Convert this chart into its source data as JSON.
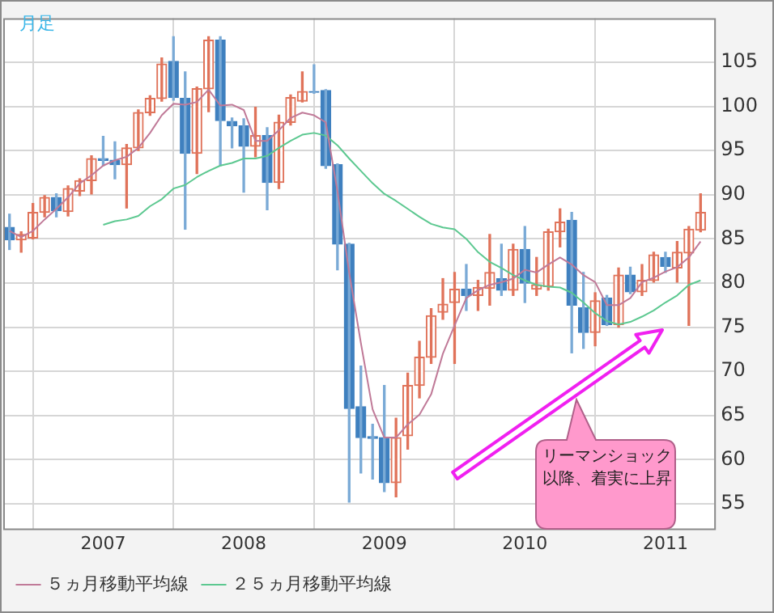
{
  "chart_data": {
    "type": "candlestick",
    "title": "月足",
    "x": [
      "2006-05",
      "2006-06",
      "2006-07",
      "2006-08",
      "2006-09",
      "2006-10",
      "2006-11",
      "2006-12",
      "2007-01",
      "2007-02",
      "2007-03",
      "2007-04",
      "2007-05",
      "2007-06",
      "2007-07",
      "2007-08",
      "2007-09",
      "2007-10",
      "2007-11",
      "2007-12",
      "2008-01",
      "2008-02",
      "2008-03",
      "2008-04",
      "2008-05",
      "2008-06",
      "2008-07",
      "2008-08",
      "2008-09",
      "2008-10",
      "2008-11",
      "2008-12",
      "2009-01",
      "2009-02",
      "2009-03",
      "2009-04",
      "2009-05",
      "2009-06",
      "2009-07",
      "2009-08",
      "2009-09",
      "2009-10",
      "2009-11",
      "2009-12",
      "2010-01",
      "2010-02",
      "2010-03",
      "2010-04",
      "2010-05",
      "2010-06",
      "2010-07",
      "2010-08",
      "2010-09",
      "2010-10",
      "2010-11",
      "2010-12",
      "2011-01",
      "2011-02",
      "2011-03",
      "2011-04"
    ],
    "ohlc": [
      [
        86.3,
        87.8,
        83.8,
        84.9
      ],
      [
        84.9,
        85.8,
        83.5,
        85.5
      ],
      [
        85.1,
        89.0,
        85.0,
        88.0
      ],
      [
        88.0,
        89.9,
        87.5,
        89.7
      ],
      [
        89.7,
        90.1,
        87.5,
        88.2
      ],
      [
        88.1,
        91.0,
        87.6,
        90.7
      ],
      [
        90.4,
        91.8,
        89.9,
        91.6
      ],
      [
        91.6,
        94.4,
        90.1,
        94.1
      ],
      [
        94.1,
        96.6,
        93.3,
        93.9
      ],
      [
        93.9,
        96.0,
        91.8,
        93.4
      ],
      [
        93.4,
        95.7,
        88.5,
        95.3
      ],
      [
        95.3,
        99.6,
        95.0,
        99.3
      ],
      [
        99.3,
        101.2,
        99.0,
        100.9
      ],
      [
        100.9,
        105.5,
        100.6,
        104.8
      ],
      [
        105.1,
        107.9,
        100.7,
        101.0
      ],
      [
        100.9,
        103.9,
        86.1,
        94.7
      ],
      [
        94.7,
        102.2,
        92.4,
        102.0
      ],
      [
        102.0,
        107.9,
        99.4,
        107.5
      ],
      [
        107.5,
        107.9,
        93.3,
        98.4
      ],
      [
        98.3,
        98.7,
        95.3,
        97.8
      ],
      [
        97.8,
        98.6,
        90.3,
        95.5
      ],
      [
        95.5,
        99.9,
        94.3,
        96.7
      ],
      [
        96.7,
        97.6,
        88.3,
        91.4
      ],
      [
        91.4,
        99.0,
        90.7,
        98.2
      ],
      [
        98.2,
        101.3,
        97.9,
        101.0
      ],
      [
        100.6,
        103.9,
        100.5,
        101.7
      ],
      [
        101.7,
        104.7,
        101.5,
        101.6
      ],
      [
        101.8,
        101.9,
        93.0,
        93.3
      ],
      [
        93.4,
        93.5,
        81.5,
        84.4
      ],
      [
        84.4,
        84.5,
        55.2,
        65.8
      ],
      [
        66.0,
        70.6,
        58.5,
        62.5
      ],
      [
        62.6,
        64.0,
        57.8,
        62.4
      ],
      [
        62.5,
        68.4,
        56.4,
        57.4
      ],
      [
        57.4,
        64.7,
        55.8,
        62.5
      ],
      [
        62.7,
        69.8,
        61.2,
        68.4
      ],
      [
        68.4,
        73.4,
        67.0,
        71.6
      ],
      [
        71.6,
        77.1,
        70.9,
        76.3
      ],
      [
        76.7,
        80.5,
        75.9,
        77.6
      ],
      [
        77.8,
        81.2,
        70.9,
        79.3
      ],
      [
        79.3,
        82.1,
        76.9,
        78.6
      ],
      [
        78.6,
        80.3,
        76.9,
        79.5
      ],
      [
        79.4,
        85.5,
        77.5,
        81.2
      ],
      [
        80.5,
        84.4,
        78.6,
        79.2
      ],
      [
        79.2,
        84.4,
        78.6,
        83.8
      ],
      [
        83.8,
        86.4,
        77.8,
        80.0
      ],
      [
        79.3,
        82.9,
        78.6,
        79.8
      ],
      [
        79.6,
        86.1,
        79.2,
        85.8
      ],
      [
        85.8,
        88.4,
        84.1,
        86.9
      ],
      [
        87.1,
        88.0,
        72.1,
        77.5
      ],
      [
        77.2,
        81.2,
        72.6,
        74.4
      ],
      [
        74.4,
        78.9,
        72.9,
        78.0
      ],
      [
        78.3,
        78.6,
        75.2,
        75.3
      ],
      [
        75.3,
        81.7,
        75.0,
        80.9
      ],
      [
        80.9,
        81.8,
        78.8,
        79.0
      ],
      [
        79.0,
        82.1,
        78.6,
        80.3
      ],
      [
        80.3,
        83.5,
        80.1,
        83.2
      ],
      [
        82.9,
        83.5,
        81.2,
        81.9
      ],
      [
        81.7,
        84.7,
        80.1,
        83.5
      ],
      [
        83.4,
        86.4,
        75.2,
        86.1
      ],
      [
        86.0,
        90.1,
        85.8,
        88.0
      ]
    ],
    "series": [
      {
        "name": "５ヵ月移動平均線",
        "type": "line",
        "color": "#c07a98",
        "x": [
          "2006-05",
          "2006-06",
          "2006-07",
          "2006-08",
          "2006-09",
          "2006-10",
          "2006-11",
          "2006-12",
          "2007-01",
          "2007-02",
          "2007-03",
          "2007-04",
          "2007-05",
          "2007-06",
          "2007-07",
          "2007-08",
          "2007-09",
          "2007-10",
          "2007-11",
          "2007-12",
          "2008-01",
          "2008-02",
          "2008-03",
          "2008-04",
          "2008-05",
          "2008-06",
          "2008-07",
          "2008-08",
          "2008-09",
          "2008-10",
          "2008-11",
          "2008-12",
          "2009-01",
          "2009-02",
          "2009-03",
          "2009-04",
          "2009-05",
          "2009-06",
          "2009-07",
          "2009-08",
          "2009-09",
          "2009-10",
          "2009-11",
          "2009-12",
          "2010-01",
          "2010-02",
          "2010-03",
          "2010-04",
          "2010-05",
          "2010-06",
          "2010-07",
          "2010-08",
          "2010-09",
          "2010-10",
          "2010-11",
          "2010-12",
          "2011-01",
          "2011-02",
          "2011-03",
          "2011-04"
        ],
        "values": [
          85.9,
          85.2,
          85.9,
          87.2,
          88.4,
          89.7,
          91.3,
          92.2,
          93.3,
          93.9,
          94.3,
          95.3,
          97.0,
          99.0,
          100.3,
          100.2,
          100.5,
          101.9,
          100.1,
          100.2,
          99.6,
          96.1,
          96.1,
          97.3,
          98.7,
          99.3,
          99.0,
          98.2,
          90.4,
          81.2,
          73.2,
          65.7,
          62.5,
          62.5,
          64.0,
          65.1,
          67.4,
          72.0,
          75.2,
          78.3,
          79.2,
          79.8,
          80.1,
          80.5,
          81.5,
          81.2,
          82.1,
          82.9,
          82.1,
          80.9,
          80.1,
          77.5,
          77.5,
          78.3,
          80.1,
          80.6,
          81.3,
          81.8,
          82.9,
          84.7
        ]
      },
      {
        "name": "２５ヵ月移動平均線",
        "type": "line",
        "color": "#5cc890",
        "x": [
          "2007-01",
          "2007-02",
          "2007-03",
          "2007-04",
          "2007-05",
          "2007-06",
          "2007-07",
          "2007-08",
          "2007-09",
          "2007-10",
          "2007-11",
          "2007-12",
          "2008-01",
          "2008-02",
          "2008-03",
          "2008-04",
          "2008-05",
          "2008-06",
          "2008-07",
          "2008-08",
          "2008-09",
          "2008-10",
          "2008-11",
          "2008-12",
          "2009-01",
          "2009-02",
          "2009-03",
          "2009-04",
          "2009-05",
          "2009-06",
          "2009-07",
          "2009-08",
          "2009-09",
          "2009-10",
          "2009-11",
          "2009-12",
          "2010-01",
          "2010-02",
          "2010-03",
          "2010-04",
          "2010-05",
          "2010-06",
          "2010-07",
          "2010-08",
          "2010-09",
          "2010-10",
          "2010-11",
          "2010-12",
          "2011-01",
          "2011-02",
          "2011-03",
          "2011-04"
        ],
        "values": [
          86.6,
          87.0,
          87.2,
          87.6,
          88.7,
          89.5,
          90.7,
          91.1,
          92.0,
          92.7,
          93.3,
          93.6,
          94.1,
          94.1,
          94.4,
          95.3,
          96.1,
          96.8,
          97.0,
          96.7,
          95.6,
          94.1,
          92.7,
          91.3,
          90.1,
          89.3,
          88.4,
          87.5,
          86.7,
          86.3,
          86.1,
          85.0,
          83.5,
          82.4,
          81.7,
          80.9,
          80.3,
          79.8,
          79.6,
          79.5,
          78.9,
          77.8,
          76.6,
          75.7,
          75.3,
          75.6,
          76.2,
          76.9,
          77.8,
          78.6,
          79.8,
          80.3
        ]
      }
    ],
    "xlim": [
      "2006-04-15",
      "2011-05-06"
    ],
    "xticks": [
      "2007",
      "2008",
      "2009",
      "2010",
      "2011"
    ],
    "ylim": [
      52.2,
      110
    ],
    "yticks": [
      55,
      60,
      65,
      70,
      75,
      80,
      85,
      90,
      95,
      100,
      105
    ],
    "grid": true,
    "legend": "bottom left",
    "marker": "none",
    "line_style": "solid",
    "annotations": [
      "リーマンショック以降、着実に上昇"
    ]
  }
}
